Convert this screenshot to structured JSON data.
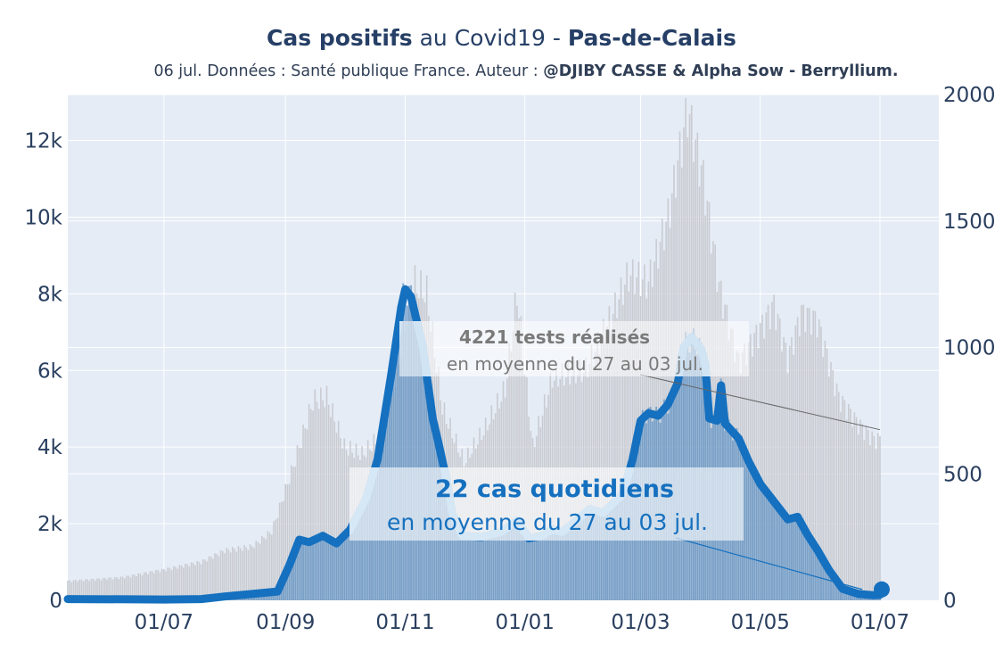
{
  "header": {
    "title_part1": "Cas positifs",
    "title_part2": " au Covid19 - ",
    "title_part3": "Pas-de-Calais",
    "subtitle_prefix": "06 jul. Données : Santé publique France. Auteur : ",
    "subtitle_author": "@DJIBY CASSE & Alpha Sow - Berryllium."
  },
  "chart_data": {
    "type": "bar",
    "title": "Cas positifs au Covid19 - Pas-de-Calais",
    "subtitle": "06 jul. Données : Santé publique France. Auteur : @DJIBY CASSE & Alpha Sow - Berryllium.",
    "x_axis": {
      "type": "date",
      "range": [
        "2020-05-13",
        "2021-07-31"
      ],
      "ticks": [
        {
          "date": "2020-07-01",
          "label": "01/07"
        },
        {
          "date": "2020-09-01",
          "label": "01/09"
        },
        {
          "date": "2020-11-01",
          "label": "01/11"
        },
        {
          "date": "2021-01-01",
          "label": "01/01"
        },
        {
          "date": "2021-03-01",
          "label": "01/03"
        },
        {
          "date": "2021-05-01",
          "label": "01/05"
        },
        {
          "date": "2021-07-01",
          "label": "01/07"
        }
      ]
    },
    "y_axis_left": {
      "range": [
        0,
        13200
      ],
      "ticks": [
        {
          "value": 0,
          "label": "0"
        },
        {
          "value": 2000,
          "label": "2k"
        },
        {
          "value": 4000,
          "label": "4k"
        },
        {
          "value": 6000,
          "label": "6k"
        },
        {
          "value": 8000,
          "label": "8k"
        },
        {
          "value": 10000,
          "label": "10k"
        },
        {
          "value": 12000,
          "label": "12k"
        }
      ]
    },
    "y_axis_right": {
      "range": [
        0,
        2000
      ],
      "ticks": [
        {
          "value": 0,
          "label": "0"
        },
        {
          "value": 500,
          "label": "500"
        },
        {
          "value": 1000,
          "label": "1000"
        },
        {
          "value": 1500,
          "label": "1500"
        },
        {
          "value": 2000,
          "label": "2000"
        }
      ]
    },
    "series": [
      {
        "description": "tests (grey bars, left axis)",
        "axis": "left",
        "color": "#c9cbd0",
        "anchors": [
          [
            "2020-05-13",
            500
          ],
          [
            "2020-06-10",
            600
          ],
          [
            "2020-07-01",
            800
          ],
          [
            "2020-07-20",
            1000
          ],
          [
            "2020-08-01",
            1300
          ],
          [
            "2020-08-15",
            1400
          ],
          [
            "2020-08-25",
            1800
          ],
          [
            "2020-09-05",
            3500
          ],
          [
            "2020-09-15",
            5200
          ],
          [
            "2020-09-22",
            5300
          ],
          [
            "2020-10-01",
            4000
          ],
          [
            "2020-10-10",
            3800
          ],
          [
            "2020-10-20",
            4300
          ],
          [
            "2020-10-28",
            6000
          ],
          [
            "2020-11-05",
            8300
          ],
          [
            "2020-11-12",
            8000
          ],
          [
            "2020-11-20",
            5000
          ],
          [
            "2020-12-01",
            3600
          ],
          [
            "2020-12-12",
            4500
          ],
          [
            "2020-12-22",
            5500
          ],
          [
            "2020-12-28",
            8000
          ],
          [
            "2021-01-05",
            4000
          ],
          [
            "2021-01-15",
            5800
          ],
          [
            "2021-02-01",
            6000
          ],
          [
            "2021-02-15",
            7500
          ],
          [
            "2021-02-23",
            8500
          ],
          [
            "2021-03-05",
            8300
          ],
          [
            "2021-03-15",
            10000
          ],
          [
            "2021-03-25",
            12800
          ],
          [
            "2021-04-02",
            11000
          ],
          [
            "2021-04-10",
            8200
          ],
          [
            "2021-04-20",
            6200
          ],
          [
            "2021-04-30",
            7000
          ],
          [
            "2021-05-08",
            7700
          ],
          [
            "2021-05-15",
            6300
          ],
          [
            "2021-05-22",
            7500
          ],
          [
            "2021-05-30",
            7300
          ],
          [
            "2021-06-10",
            5300
          ],
          [
            "2021-06-20",
            4600
          ],
          [
            "2021-06-28",
            4200
          ],
          [
            "2021-07-01",
            4200
          ]
        ]
      },
      {
        "description": "daily cases (blue bars and line, right axis)",
        "axis": "right",
        "color": "#1570bf",
        "line_anchors": [
          [
            "2020-05-13",
            5
          ],
          [
            "2020-06-15",
            4
          ],
          [
            "2020-07-01",
            3
          ],
          [
            "2020-07-20",
            5
          ],
          [
            "2020-08-01",
            15
          ],
          [
            "2020-08-15",
            25
          ],
          [
            "2020-08-28",
            35
          ],
          [
            "2020-09-03",
            140
          ],
          [
            "2020-09-08",
            240
          ],
          [
            "2020-09-13",
            230
          ],
          [
            "2020-09-20",
            255
          ],
          [
            "2020-09-27",
            225
          ],
          [
            "2020-10-04",
            280
          ],
          [
            "2020-10-12",
            400
          ],
          [
            "2020-10-18",
            560
          ],
          [
            "2020-10-25",
            900
          ],
          [
            "2020-10-30",
            1160
          ],
          [
            "2020-11-01",
            1230
          ],
          [
            "2020-11-04",
            1200
          ],
          [
            "2020-11-10",
            1000
          ],
          [
            "2020-11-15",
            720
          ],
          [
            "2020-11-18",
            620
          ],
          [
            "2020-11-22",
            480
          ],
          [
            "2020-11-25",
            340
          ],
          [
            "2020-11-30",
            255
          ],
          [
            "2020-12-10",
            250
          ],
          [
            "2020-12-20",
            270
          ],
          [
            "2020-12-28",
            315
          ],
          [
            "2021-01-03",
            245
          ],
          [
            "2021-01-10",
            255
          ],
          [
            "2021-01-15",
            280
          ],
          [
            "2021-01-20",
            270
          ],
          [
            "2021-01-25",
            300
          ],
          [
            "2021-02-03",
            360
          ],
          [
            "2021-02-10",
            345
          ],
          [
            "2021-02-20",
            420
          ],
          [
            "2021-02-25",
            560
          ],
          [
            "2021-03-01",
            710
          ],
          [
            "2021-03-05",
            740
          ],
          [
            "2021-03-10",
            730
          ],
          [
            "2021-03-15",
            775
          ],
          [
            "2021-03-20",
            860
          ],
          [
            "2021-03-23",
            1000
          ],
          [
            "2021-03-27",
            1040
          ],
          [
            "2021-04-01",
            990
          ],
          [
            "2021-04-03",
            930
          ],
          [
            "2021-04-05",
            720
          ],
          [
            "2021-04-09",
            710
          ],
          [
            "2021-04-11",
            850
          ],
          [
            "2021-04-13",
            700
          ],
          [
            "2021-04-20",
            640
          ],
          [
            "2021-04-25",
            550
          ],
          [
            "2021-05-01",
            460
          ],
          [
            "2021-05-05",
            420
          ],
          [
            "2021-05-12",
            350
          ],
          [
            "2021-05-15",
            320
          ],
          [
            "2021-05-20",
            330
          ],
          [
            "2021-05-25",
            260
          ],
          [
            "2021-05-30",
            200
          ],
          [
            "2021-06-05",
            120
          ],
          [
            "2021-06-12",
            45
          ],
          [
            "2021-06-20",
            25
          ],
          [
            "2021-06-28",
            20
          ],
          [
            "2021-07-01",
            22
          ]
        ]
      }
    ],
    "annotations": [
      {
        "bold": "4221 tests réalisés",
        "text": "en moyenne du 27 au 03 jul.",
        "value": 4221,
        "points_to": [
          "2021-07-01",
          4221
        ],
        "axis": "left"
      },
      {
        "bold": "22 cas quotidiens",
        "text": "en moyenne du 27 au 03 jul.",
        "value": 22,
        "points_to": [
          "2021-07-01",
          22
        ],
        "axis": "right"
      }
    ],
    "colors": {
      "plot_bg": "#e5ecf6",
      "grid": "#ffffff",
      "tests_bars": "#c9cbd0",
      "cases_bars": "#5b8fc2",
      "cases_line": "#1570bf",
      "cases_line_highlight": "#98c4e6",
      "annotation_box": "#ffffff"
    },
    "grid": true
  }
}
